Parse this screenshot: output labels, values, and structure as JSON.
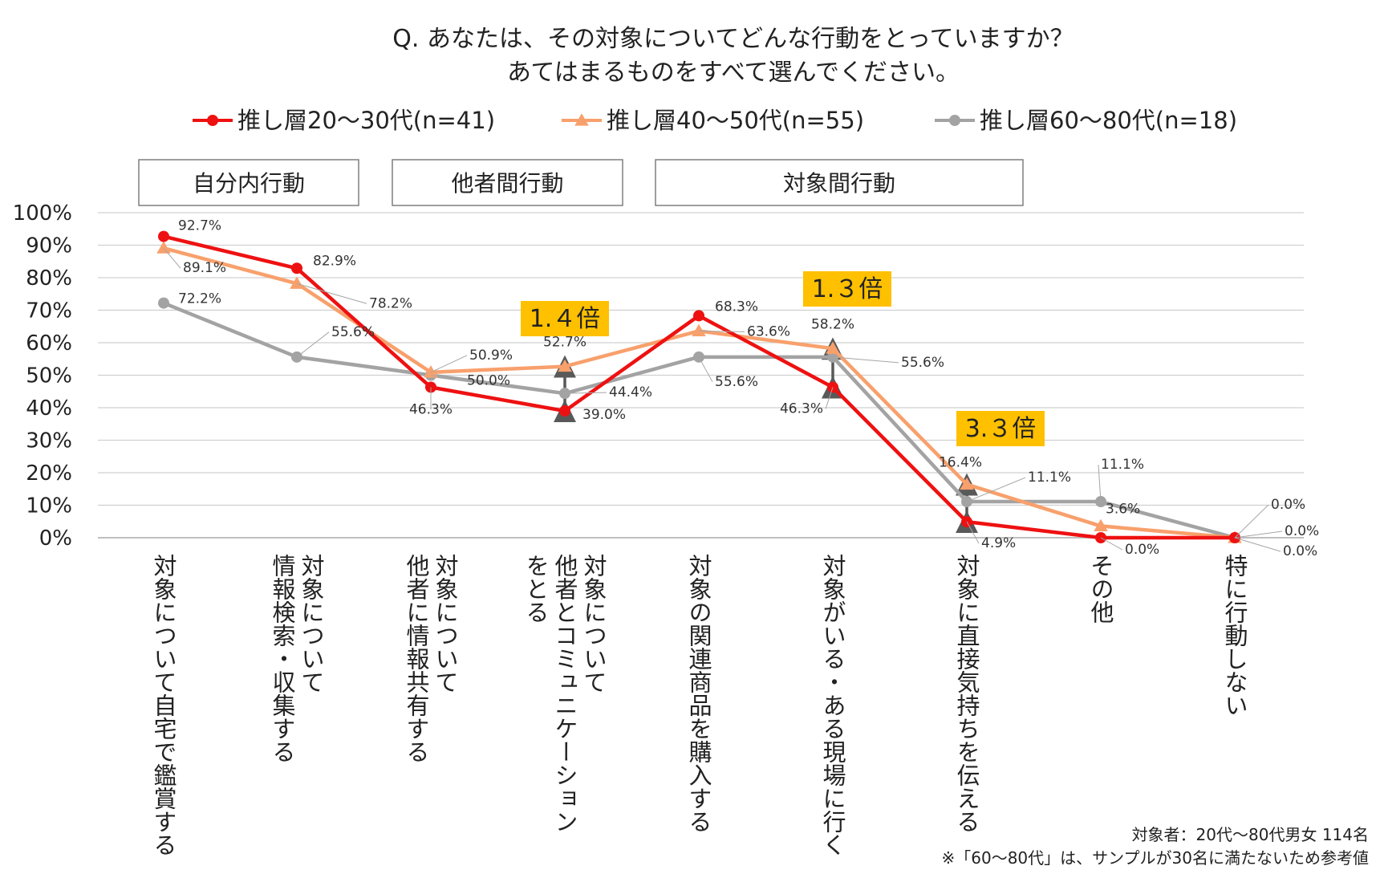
{
  "chart_data": {
    "type": "line",
    "title_line1": "Q. あなたは、その対象についてどんな行動をとっていますか？",
    "title_line2": "あてはまるものをすべて選んでください。",
    "categories": [
      [
        "対象について自宅で鑑賞する"
      ],
      [
        "対象について",
        "情報検索・収集する"
      ],
      [
        "対象について",
        "他者に情報共有する"
      ],
      [
        "対象について",
        "他者とコミュニケーション",
        "をとる"
      ],
      [
        "対象の関連商品を購入する"
      ],
      [
        "対象がいる・ある現場に行く"
      ],
      [
        "対象に直接気持ちを伝える"
      ],
      [
        "その他"
      ],
      [
        "特に行動しない"
      ]
    ],
    "series": [
      {
        "name": "推し層20～30代(n=41)",
        "color": "#ee1111",
        "marker": "circle",
        "values": [
          92.7,
          82.9,
          46.3,
          39.0,
          68.3,
          46.3,
          4.9,
          0.0,
          0.0
        ],
        "labels": [
          "92.7%",
          "82.9%",
          "46.3%",
          "39.0%",
          "68.3%",
          "46.3%",
          "4.9%",
          "0.0%",
          "0.0%"
        ]
      },
      {
        "name": "推し層40～50代(n=55)",
        "color": "#f8a06c",
        "marker": "triangle",
        "values": [
          89.1,
          78.2,
          50.9,
          52.7,
          63.6,
          58.2,
          16.4,
          3.6,
          0.0
        ],
        "labels": [
          "89.1%",
          "78.2%",
          "50.9%",
          "52.7%",
          "63.6%",
          "58.2%",
          "16.4%",
          "3.6%",
          "0.0%"
        ]
      },
      {
        "name": "推し層60～80代(n=18)",
        "color": "#a3a3a3",
        "marker": "circle",
        "values": [
          72.2,
          55.6,
          50.0,
          44.4,
          55.6,
          55.6,
          11.1,
          11.1,
          0.0
        ],
        "labels": [
          "72.2%",
          "55.6%",
          "50.0%",
          "44.4%",
          "55.6%",
          "55.6%",
          "11.1%",
          "11.1%",
          "0.0%"
        ]
      }
    ],
    "yticks": [
      "0%",
      "10%",
      "20%",
      "30%",
      "40%",
      "50%",
      "60%",
      "70%",
      "80%",
      "90%",
      "100%"
    ],
    "ylim": [
      0,
      100
    ],
    "groups": [
      {
        "label": "自分内行動",
        "from": 0,
        "to": 1
      },
      {
        "label": "他者間行動",
        "from": 2,
        "to": 3
      },
      {
        "label": "対象間行動",
        "from": 4,
        "to": 6
      }
    ],
    "ratios": [
      {
        "label": "1.４倍",
        "category": 3,
        "from": 39.0,
        "to": 52.7
      },
      {
        "label": "1.３倍",
        "category": 5,
        "from": 46.3,
        "to": 58.2
      },
      {
        "label": "3.３倍",
        "category": 6,
        "from": 4.9,
        "to": 16.4
      }
    ],
    "notes": [
      "対象者：20代～80代男女 114名",
      "※「60～80代」は、サンプルが30名に満たないため参考値"
    ]
  },
  "colors": {
    "grid": "#d0d0d0",
    "axis": "#bfbfbf",
    "ratio_box": "#ffc000",
    "arrow": "#595959",
    "group_border": "#7f7f7f"
  }
}
